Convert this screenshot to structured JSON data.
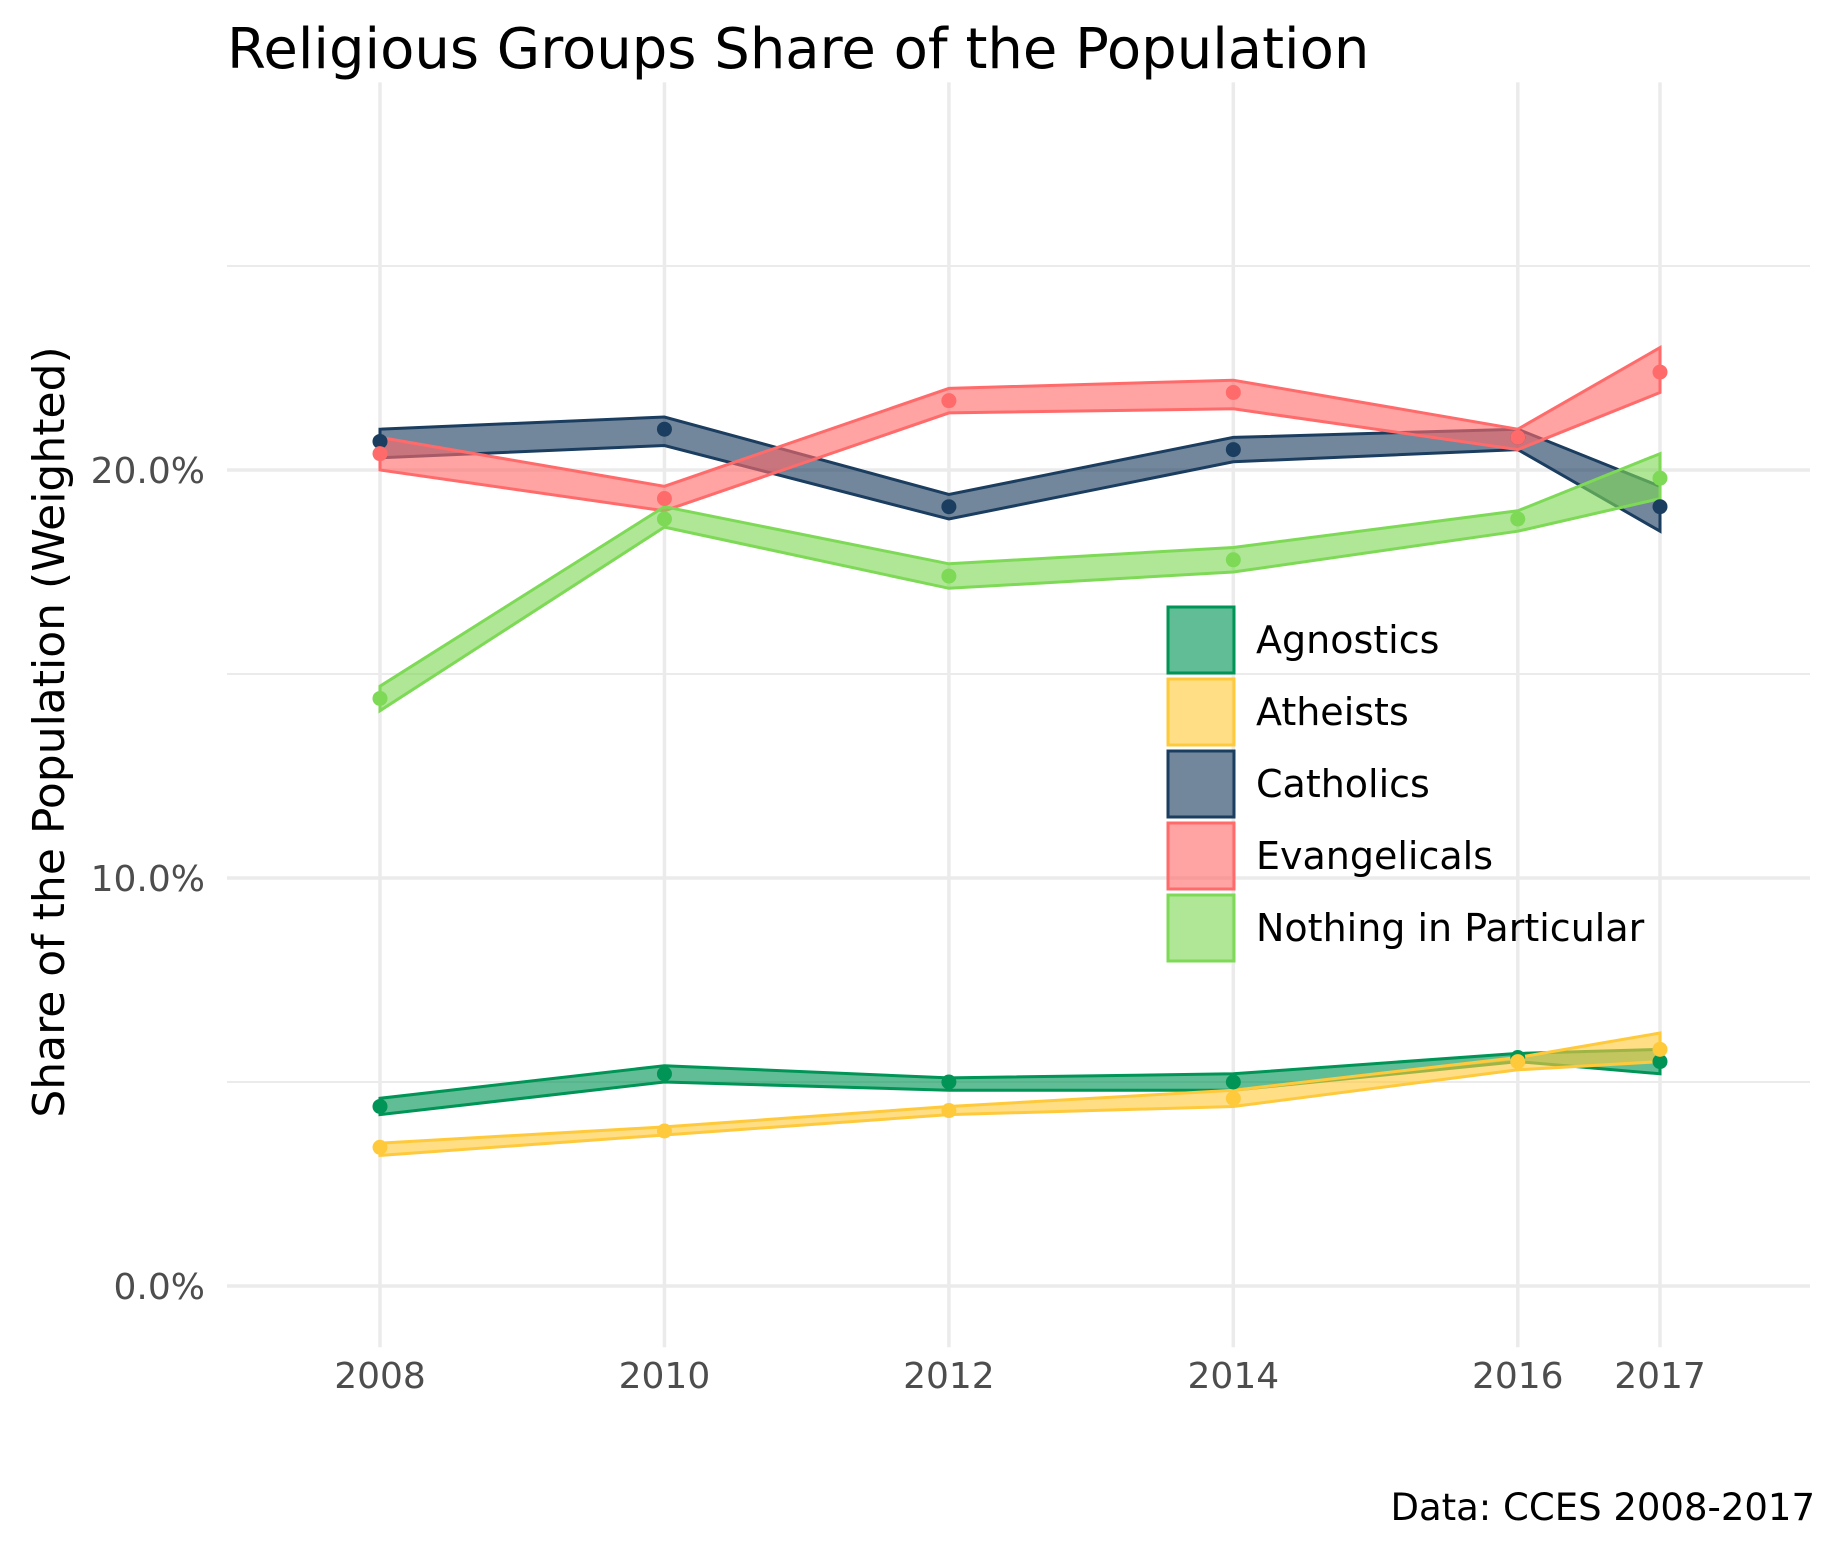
{
  "chart_data": {
    "type": "line",
    "title": "Religious Groups Share of the Population",
    "xlabel": "",
    "ylabel": "Share of the Population (Weighted)",
    "caption": "Data: CCES 2008-2017",
    "x": [
      "2008",
      "2010",
      "2012",
      "2014",
      "2016",
      "2017"
    ],
    "ylim": [
      -1.5,
      29.5
    ],
    "y_ticks": [
      0,
      10,
      20
    ],
    "y_tick_labels": [
      "0.0%",
      "10.0%",
      "20.0%"
    ],
    "grid": true,
    "legend_position": "right-center-inside",
    "series": [
      {
        "name": "Agnostics",
        "color": "#009456",
        "values": [
          4.4,
          5.2,
          5.0,
          5.0,
          5.6,
          5.5
        ],
        "lower": [
          4.2,
          5.0,
          4.8,
          4.8,
          5.5,
          5.2
        ],
        "upper": [
          4.6,
          5.4,
          5.1,
          5.2,
          5.7,
          5.8
        ]
      },
      {
        "name": "Atheists",
        "color": "#FFC93C",
        "values": [
          3.4,
          3.8,
          4.3,
          4.6,
          5.5,
          5.8
        ],
        "lower": [
          3.2,
          3.7,
          4.2,
          4.4,
          5.3,
          5.5
        ],
        "upper": [
          3.5,
          3.9,
          4.4,
          4.8,
          5.6,
          6.2
        ]
      },
      {
        "name": "Catholics",
        "color": "#1B3D5F",
        "values": [
          20.7,
          21.0,
          19.1,
          20.5,
          20.8,
          19.1
        ],
        "lower": [
          20.3,
          20.6,
          18.8,
          20.2,
          20.5,
          18.5
        ],
        "upper": [
          21.0,
          21.3,
          19.4,
          20.8,
          21.0,
          19.6
        ]
      },
      {
        "name": "Evangelicals",
        "color": "#FF6B6B",
        "values": [
          20.4,
          19.3,
          21.7,
          21.9,
          20.8,
          22.4
        ],
        "lower": [
          20.0,
          19.0,
          21.4,
          21.5,
          20.5,
          21.9
        ],
        "upper": [
          20.8,
          19.6,
          22.0,
          22.2,
          21.0,
          23.0
        ]
      },
      {
        "name": "Nothing in Particular",
        "color": "#7ED957",
        "values": [
          14.4,
          18.8,
          17.4,
          17.8,
          18.8,
          19.8
        ],
        "lower": [
          14.1,
          18.6,
          17.1,
          17.5,
          18.5,
          19.3
        ],
        "upper": [
          14.7,
          19.1,
          17.7,
          18.1,
          19.0,
          20.4
        ]
      }
    ]
  }
}
